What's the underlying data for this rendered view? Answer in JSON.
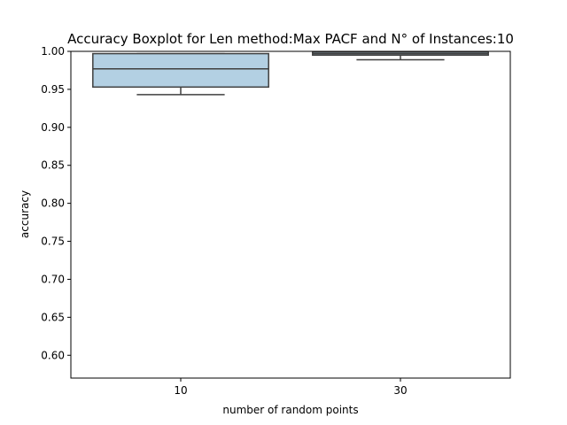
{
  "chart_data": {
    "type": "box",
    "title": "Accuracy Boxplot for Len method:Max PACF and N° of Instances:10",
    "xlabel": "number of random points",
    "ylabel": "accuracy",
    "ylim": [
      0.57,
      1.0
    ],
    "yticks": [
      "0.60",
      "0.65",
      "0.70",
      "0.75",
      "0.80",
      "0.85",
      "0.90",
      "0.95",
      "1.00"
    ],
    "categories": [
      "10",
      "30"
    ],
    "boxes": [
      {
        "category": "10",
        "whisker_low": 0.943,
        "q1": 0.953,
        "median": 0.977,
        "q3": 0.997,
        "whisker_high": 0.997
      },
      {
        "category": "30",
        "whisker_low": 0.989,
        "q1": 0.995,
        "median": 0.997,
        "q3": 0.999,
        "whisker_high": 0.999
      }
    ],
    "colors": {
      "box_fill": "#b3d0e3",
      "box_edge": "#3f3f3f",
      "axis": "#000000"
    },
    "grid": false,
    "legend": "none"
  }
}
